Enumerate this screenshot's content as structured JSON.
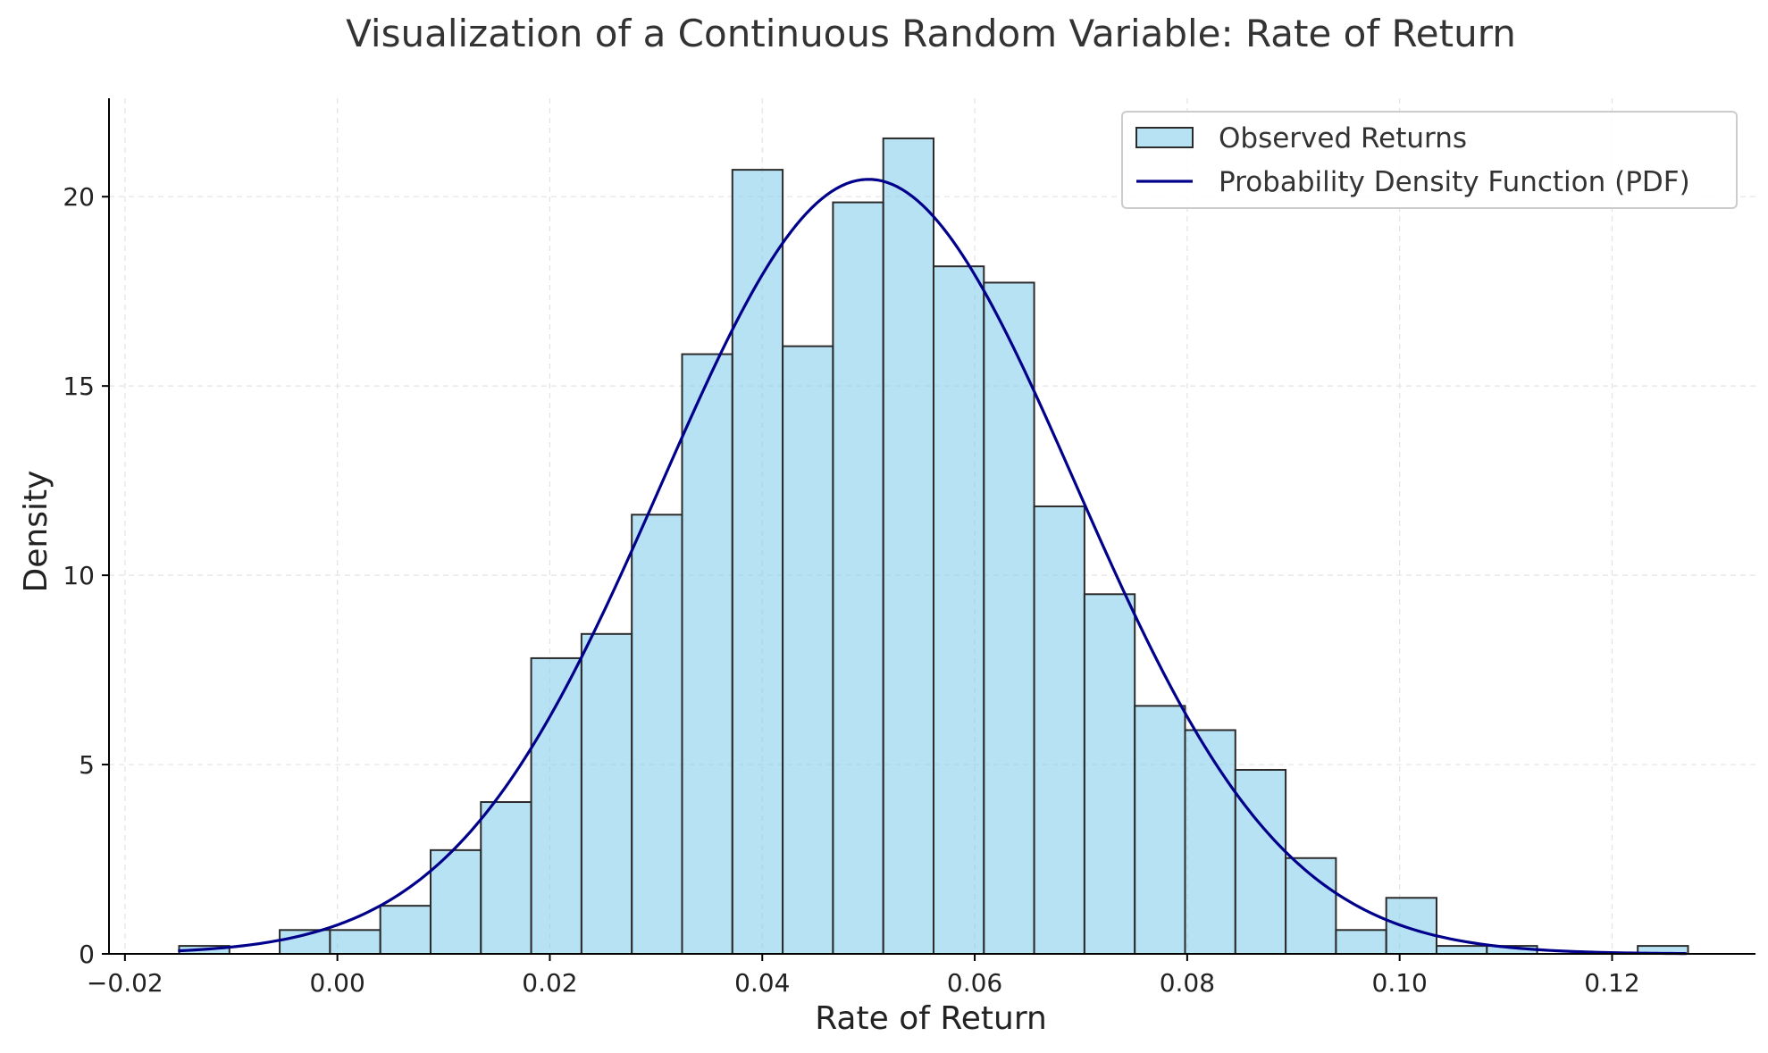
{
  "chart_data": {
    "type": "bar",
    "title": "Visualization of a Continuous Random Variable: Rate of Return",
    "xlabel": "Rate of Return",
    "ylabel": "Density",
    "xlim": [
      -0.0215,
      0.1335
    ],
    "ylim": [
      0,
      22.6
    ],
    "xticks": [
      -0.02,
      0.0,
      0.02,
      0.04,
      0.06,
      0.08,
      0.1,
      0.12
    ],
    "xtick_labels": [
      "−0.02",
      "0.00",
      "0.02",
      "0.04",
      "0.06",
      "0.08",
      "0.10",
      "0.12"
    ],
    "yticks": [
      0,
      5,
      10,
      15,
      20
    ],
    "ytick_labels": [
      "0",
      "5",
      "10",
      "15",
      "20"
    ],
    "grid": true,
    "legend_position": "top-right",
    "series": [
      {
        "name": "Observed Returns",
        "kind": "histogram",
        "color": "#87CEEB",
        "edge_color": "#2b2b2b",
        "bin_start": -0.0149,
        "bin_width": 0.004735,
        "values": [
          0.21,
          0.0,
          0.63,
          0.63,
          1.27,
          2.74,
          4.01,
          7.81,
          8.45,
          11.6,
          15.84,
          20.71,
          16.05,
          19.85,
          21.54,
          18.16,
          17.73,
          11.82,
          9.5,
          6.55,
          5.91,
          4.86,
          2.53,
          0.63,
          1.48,
          0.21,
          0.21,
          0.0,
          0.0,
          0.21
        ]
      },
      {
        "name": "Probability Density Function (PDF)",
        "kind": "line",
        "color": "#00008B",
        "mean": 0.05,
        "std": 0.0195,
        "x_range": [
          -0.015,
          0.127
        ]
      }
    ]
  }
}
